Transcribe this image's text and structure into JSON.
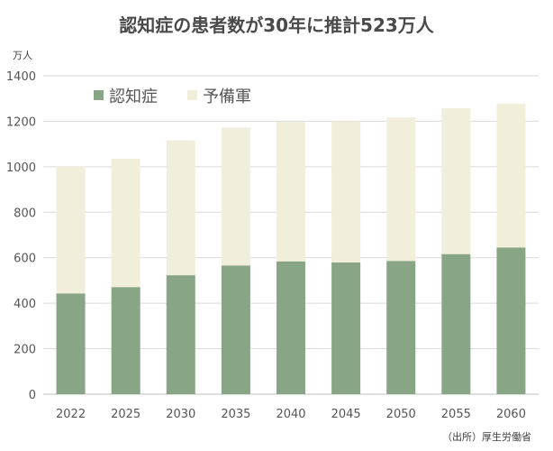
{
  "title": "認知症の患者数が30年に推計523万人",
  "unit": "万人",
  "source": "（出所）厚生労働省",
  "chart_data": {
    "type": "bar",
    "stacked": true,
    "categories": [
      "2022",
      "2025",
      "2030",
      "2035",
      "2040",
      "2045",
      "2050",
      "2055",
      "2060"
    ],
    "series": [
      {
        "name": "認知症",
        "color": "#88a586",
        "values": [
          443,
          471,
          523,
          566,
          584,
          579,
          586,
          616,
          645
        ]
      },
      {
        "name": "予備軍",
        "color": "#f1eedb",
        "values": [
          558,
          564,
          593,
          606,
          613,
          621,
          631,
          641,
          632
        ]
      }
    ],
    "ylim": [
      0,
      1400
    ],
    "yticks": [
      0,
      200,
      400,
      600,
      800,
      1000,
      1200,
      1400
    ],
    "grid": true,
    "legend_position": "top-left"
  }
}
